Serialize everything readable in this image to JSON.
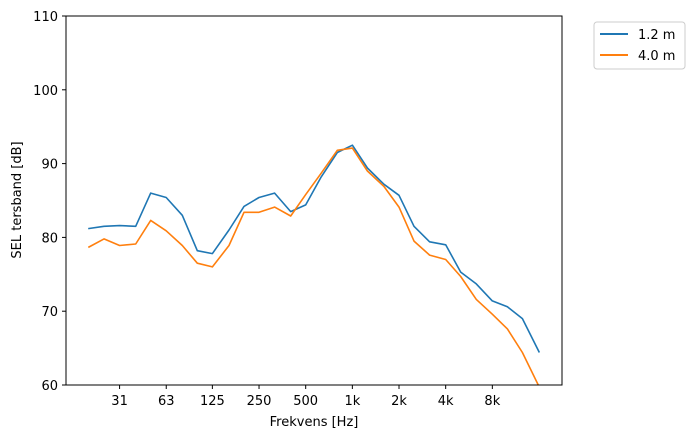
{
  "chart_data": {
    "type": "line",
    "xlabel": "Frekvens [Hz]",
    "ylabel": "SEL tersband [dB]",
    "ylim": [
      60,
      110
    ],
    "x_scale": "log2",
    "x_ticks": [
      31.5,
      63,
      125,
      250,
      500,
      1000,
      2000,
      4000,
      8000
    ],
    "x_tick_labels": [
      "31",
      "63",
      "125",
      "250",
      "500",
      "1k",
      "2k",
      "4k",
      "8k"
    ],
    "y_ticks": [
      60,
      70,
      80,
      90,
      100,
      110
    ],
    "y_tick_labels": [
      "60",
      "70",
      "80",
      "90",
      "100",
      "110"
    ],
    "x": [
      20,
      25,
      31.5,
      40,
      50,
      63,
      80,
      100,
      125,
      160,
      200,
      250,
      315,
      400,
      500,
      630,
      800,
      1000,
      1250,
      1600,
      2000,
      2500,
      3150,
      4000,
      5000,
      6300,
      8000,
      10000,
      12500,
      16000
    ],
    "series": [
      {
        "name": "1.2 m",
        "color": "#1f77b4",
        "values": [
          81.2,
          81.5,
          81.6,
          81.5,
          86.0,
          85.4,
          83.0,
          78.2,
          77.8,
          81.0,
          84.2,
          85.4,
          86.0,
          83.5,
          84.4,
          88.2,
          91.5,
          92.5,
          89.4,
          87.2,
          85.7,
          81.5,
          79.4,
          79.0,
          75.3,
          73.7,
          71.4,
          70.6,
          69.0,
          64.5
        ]
      },
      {
        "name": "4.0 m",
        "color": "#ff7f0e",
        "values": [
          78.7,
          79.8,
          78.9,
          79.1,
          82.3,
          80.9,
          78.9,
          76.5,
          76.0,
          78.9,
          83.4,
          83.4,
          84.1,
          82.9,
          85.8,
          88.7,
          91.8,
          92.1,
          89.0,
          86.9,
          84.1,
          79.5,
          77.6,
          77.0,
          74.7,
          71.6,
          69.6,
          67.6,
          64.4,
          59.8
        ]
      }
    ],
    "legend": {
      "placement": "outside-upper-right",
      "entries": [
        "1.2 m",
        "4.0 m"
      ]
    },
    "grid": false
  }
}
